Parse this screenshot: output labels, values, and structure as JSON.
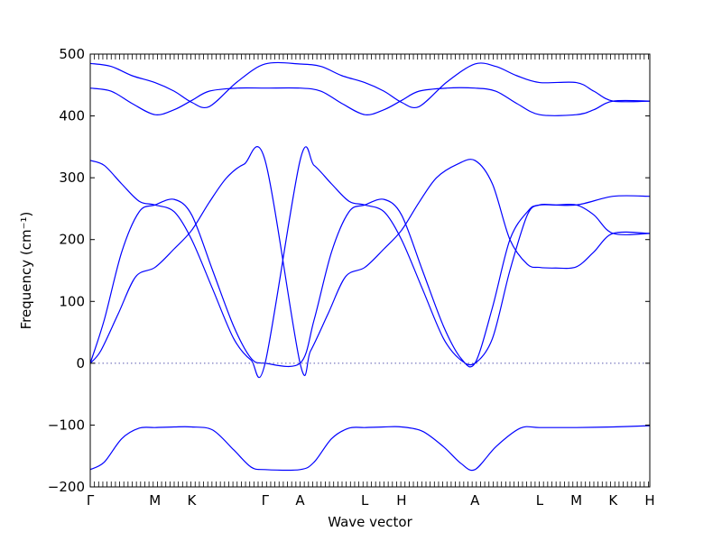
{
  "chart_data": {
    "type": "line",
    "title": "",
    "xlabel": "Wave vector",
    "ylabel": "Frequency (cm⁻¹)",
    "ylim": [
      -200,
      500
    ],
    "yticks": [
      -200,
      -100,
      0,
      100,
      200,
      300,
      400,
      500
    ],
    "xlim": [
      0,
      16
    ],
    "xticks": [
      {
        "label": "Γ",
        "x": 0
      },
      {
        "label": "M",
        "x": 1.85
      },
      {
        "label": "K",
        "x": 2.9
      },
      {
        "label": "Γ",
        "x": 5.0
      },
      {
        "label": "A",
        "x": 6.0
      },
      {
        "label": "L",
        "x": 7.85
      },
      {
        "label": "H",
        "x": 8.9
      },
      {
        "label": "A",
        "x": 11.0
      },
      {
        "label": "L",
        "x": 12.85
      },
      {
        "label": "M",
        "x": 13.9
      },
      {
        "label": "K",
        "x": 14.95
      },
      {
        "label": "H",
        "x": 16.0
      }
    ],
    "zero_line": true,
    "grid": false,
    "line_color": "#0000ff",
    "series": [
      {
        "x": [
          0,
          0.4,
          0.9,
          1.4,
          1.85,
          2.4,
          2.9,
          3.5,
          4.1,
          4.6,
          5.0,
          6.0,
          6.4,
          6.9,
          7.4,
          7.85,
          8.4,
          8.9,
          9.5,
          10.1,
          10.6,
          11.0,
          11.6,
          12.3,
          12.85,
          13.9,
          14.95,
          16.0
        ],
        "y": [
          -172,
          -160,
          -122,
          -105,
          -104,
          -103,
          -103,
          -108,
          -140,
          -168,
          -172,
          -172,
          -160,
          -122,
          -105,
          -104,
          -103,
          -103,
          -110,
          -135,
          -162,
          -172,
          -135,
          -105,
          -104,
          -104,
          -103,
          -101
        ]
      },
      {
        "x": [
          0,
          0.3,
          0.8,
          1.3,
          1.85,
          2.4,
          2.9,
          3.4,
          3.9,
          4.4,
          5.0,
          6.0,
          6.3,
          6.8,
          7.3,
          7.85,
          8.4,
          8.9,
          9.4,
          9.9,
          10.5,
          11.0,
          11.5,
          12.0,
          12.5,
          12.85,
          13.3,
          13.9,
          14.4,
          14.95,
          16.0
        ],
        "y": [
          0,
          20,
          80,
          140,
          155,
          185,
          215,
          260,
          300,
          322,
          328,
          0,
          20,
          80,
          140,
          155,
          185,
          215,
          260,
          300,
          322,
          328,
          290,
          200,
          160,
          155,
          154,
          156,
          180,
          210,
          210
        ]
      },
      {
        "x": [
          0,
          0.4,
          0.9,
          1.4,
          1.85,
          2.4,
          2.9,
          3.5,
          4.1,
          4.6,
          5.0,
          6.0,
          6.4,
          6.9,
          7.4,
          7.85,
          8.4,
          8.9,
          9.5,
          10.1,
          10.6,
          11.0,
          11.5,
          12.0,
          12.5,
          12.85,
          13.9,
          14.95,
          16.0
        ],
        "y": [
          0,
          70,
          180,
          245,
          256,
          265,
          240,
          150,
          60,
          8,
          0,
          0,
          70,
          180,
          245,
          256,
          265,
          240,
          150,
          60,
          8,
          0,
          90,
          200,
          245,
          256,
          256,
          270,
          270
        ]
      },
      {
        "x": [
          0,
          0.4,
          0.9,
          1.4,
          1.85,
          2.4,
          2.9,
          3.5,
          4.1,
          4.6,
          5.0,
          6.0,
          6.4,
          6.9,
          7.4,
          7.85,
          8.4,
          8.9,
          9.5,
          10.1,
          10.6,
          11.0,
          11.5,
          12.0,
          12.5,
          12.85,
          13.3,
          13.9,
          14.4,
          14.95,
          16.0
        ],
        "y": [
          328,
          320,
          290,
          262,
          256,
          245,
          200,
          120,
          40,
          5,
          0,
          328,
          320,
          290,
          262,
          256,
          245,
          200,
          120,
          40,
          5,
          0,
          40,
          150,
          240,
          256,
          256,
          256,
          240,
          210,
          210
        ]
      },
      {
        "x": [
          0,
          0.6,
          1.2,
          1.85,
          2.4,
          2.9,
          3.4,
          4.2,
          5.0,
          6.0,
          6.6,
          7.2,
          7.85,
          8.4,
          8.9,
          9.4,
          10.2,
          11.0,
          11.6,
          12.2,
          12.85,
          13.9,
          14.4,
          14.95,
          16.0
        ],
        "y": [
          445,
          440,
          420,
          402,
          410,
          425,
          440,
          445,
          445,
          445,
          440,
          420,
          402,
          410,
          425,
          440,
          445,
          445,
          440,
          420,
          402,
          402,
          410,
          424,
          424
        ]
      },
      {
        "x": [
          0,
          0.6,
          1.2,
          1.85,
          2.4,
          2.9,
          3.4,
          4.2,
          5.0,
          6.0,
          6.6,
          7.2,
          7.85,
          8.4,
          8.9,
          9.4,
          10.2,
          11.0,
          11.6,
          12.2,
          12.85,
          13.9,
          14.4,
          14.95,
          16.0
        ],
        "y": [
          485,
          480,
          465,
          454,
          440,
          422,
          415,
          455,
          484,
          484,
          480,
          465,
          454,
          440,
          422,
          415,
          455,
          484,
          480,
          465,
          454,
          454,
          440,
          424,
          424
        ]
      }
    ]
  }
}
